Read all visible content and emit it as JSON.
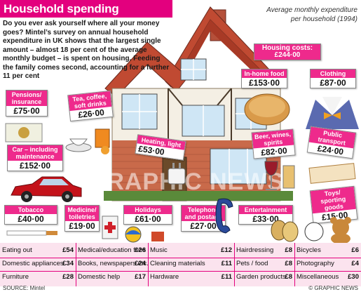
{
  "header": {
    "title": "Household spending",
    "subtitle_line1": "Average monthly expenditure",
    "subtitle_line2": "per household (1994)"
  },
  "intro": "Do you ever ask yourself where all your money goes? Mintel’s survey on annual household expenditure in UK shows that the largest single amount – almost 18 per cent of the average monthly budget – is spent on housing. Feeding the family comes second, accounting for a further 11 per cent",
  "watermark": "GRAPHIC NEWS",
  "colors": {
    "accent": "#e3007e",
    "tag": "#ee2a8c",
    "panel": "#fbe3ee"
  },
  "chart_data": {
    "type": "table",
    "title": "Household spending",
    "subtitle": "Average monthly expenditure per household (1994)",
    "unit": "£",
    "illustrated_items": [
      {
        "label": "Housing costs",
        "value_text": "£244·00",
        "value": 244.0,
        "icon": "house-icon"
      },
      {
        "label": "In-home food",
        "value_text": "£153·00",
        "value": 153.0,
        "icon": "bread-icon"
      },
      {
        "label": "Clothing",
        "value_text": "£87·00",
        "value": 87.0,
        "icon": "shirt-bowtie-icon"
      },
      {
        "label": "Pensions/ insurance",
        "value_text": "£75·00",
        "value": 75.0,
        "icon": "pension-icon"
      },
      {
        "label": "Tea, coffee, soft drinks",
        "value_text": "£26·00",
        "value": 26.0,
        "icon": "teacup-icon"
      },
      {
        "label": "Heating, light",
        "value_text": "£53·00",
        "value": 53.0,
        "icon": "plug-icon"
      },
      {
        "label": "Car – including maintenance",
        "value_text": "£152·00",
        "value": 152.0,
        "icon": "car-icon"
      },
      {
        "label": "Beer, wines, spirits",
        "value_text": "£82·00",
        "value": 82.0,
        "icon": "wine-glass-icon"
      },
      {
        "label": "Public transport",
        "value_text": "£24·00",
        "value": 24.0,
        "icon": "ticket-icon"
      },
      {
        "label": "Toys/ sporting goods",
        "value_text": "£15·00",
        "value": 15.0,
        "icon": "teddy-bear-icon"
      },
      {
        "label": "Tobacco",
        "value_text": "£40·00",
        "value": 40.0,
        "icon": "cigarette-icon"
      },
      {
        "label": "Medicine/ toiletries",
        "value_text": "£19·00",
        "value": 19.0,
        "icon": "medicine-icon"
      },
      {
        "label": "Holidays",
        "value_text": "£61·00",
        "value": 61.0,
        "icon": "beach-ball-icon"
      },
      {
        "label": "Telephone and postage",
        "value_text": "£27·00",
        "value": 27.0,
        "icon": "telephone-icon"
      },
      {
        "label": "Entertainment",
        "value_text": "£33·00",
        "value": 33.0,
        "icon": "theatre-masks-icon"
      }
    ],
    "table_items": [
      [
        {
          "label": "Eating out",
          "value_text": "£54",
          "value": 54
        },
        {
          "label": "Medical/education fees",
          "value_text": "£26",
          "value": 26
        },
        {
          "label": "Music",
          "value_text": "£12",
          "value": 12
        },
        {
          "label": "Hairdressing",
          "value_text": "£8",
          "value": 8
        },
        {
          "label": "Bicycles",
          "value_text": "£6",
          "value": 6
        }
      ],
      [
        {
          "label": "Domestic appliances",
          "value_text": "£34",
          "value": 34
        },
        {
          "label": "Books, newspapers etc.",
          "value_text": "£24",
          "value": 24
        },
        {
          "label": "Cleaning materials",
          "value_text": "£11",
          "value": 11
        },
        {
          "label": "Pets / food",
          "value_text": "£8",
          "value": 8
        },
        {
          "label": "Photography",
          "value_text": "£4",
          "value": 4
        }
      ],
      [
        {
          "label": "Furniture",
          "value_text": "£28",
          "value": 28
        },
        {
          "label": "Domestic help",
          "value_text": "£17",
          "value": 17
        },
        {
          "label": "Hardware",
          "value_text": "£11",
          "value": 11
        },
        {
          "label": "Garden products",
          "value_text": "£8",
          "value": 8
        },
        {
          "label": "Miscellaneous",
          "value_text": "£30",
          "value": 30
        }
      ]
    ]
  },
  "footer": {
    "source": "SOURCE: Mintel",
    "credit": "© GRAPHIC NEWS"
  }
}
